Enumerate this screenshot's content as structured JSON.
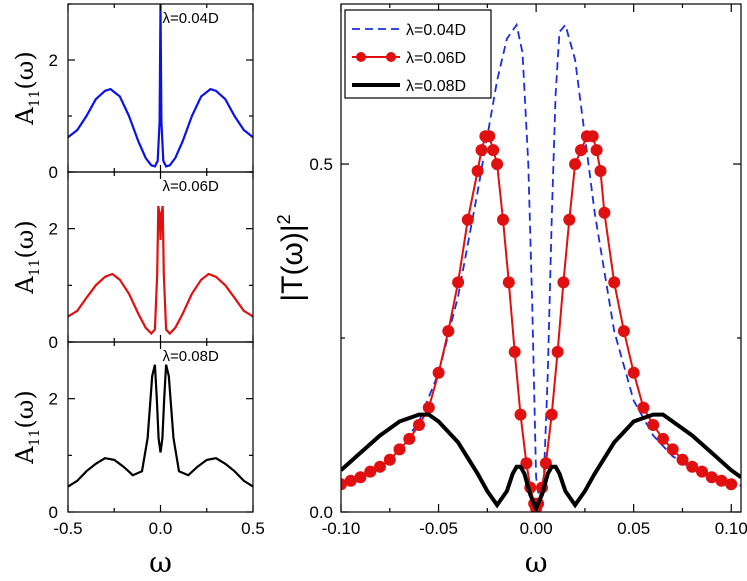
{
  "chart_data": [
    {
      "type": "line",
      "panel": "left-top",
      "annotation": "λ=0.04D",
      "ylabel": "A11(ω)",
      "ylabel_main": "A",
      "ylabel_sub": "11",
      "ylabel_tail": "(ω)",
      "xlabel": "",
      "xlim": [
        -0.5,
        0.5
      ],
      "ylim": [
        0,
        3.0
      ],
      "y_ticks": [
        "0",
        "2"
      ],
      "color": "#0a12e8",
      "x": [
        -0.5,
        -0.45,
        -0.4,
        -0.35,
        -0.3,
        -0.27,
        -0.22,
        -0.17,
        -0.12,
        -0.08,
        -0.05,
        -0.03,
        -0.015,
        -0.005,
        0.0,
        0.005,
        0.015,
        0.03,
        0.05,
        0.08,
        0.12,
        0.17,
        0.22,
        0.27,
        0.3,
        0.35,
        0.4,
        0.45,
        0.5
      ],
      "y": [
        0.62,
        0.75,
        1.0,
        1.3,
        1.45,
        1.48,
        1.35,
        1.0,
        0.55,
        0.25,
        0.12,
        0.1,
        0.2,
        0.9,
        3.0,
        0.9,
        0.2,
        0.1,
        0.12,
        0.25,
        0.55,
        1.0,
        1.35,
        1.48,
        1.45,
        1.3,
        1.0,
        0.75,
        0.62
      ]
    },
    {
      "type": "line",
      "panel": "left-middle",
      "annotation": "λ=0.06D",
      "ylabel": "A11(ω)",
      "ylabel_main": "A",
      "ylabel_sub": "11",
      "ylabel_tail": "(ω)",
      "xlabel": "",
      "xlim": [
        -0.5,
        0.5
      ],
      "ylim": [
        0,
        3.0
      ],
      "y_ticks": [
        "0",
        "2"
      ],
      "color": "#e01010",
      "x": [
        -0.5,
        -0.45,
        -0.4,
        -0.35,
        -0.3,
        -0.26,
        -0.22,
        -0.17,
        -0.12,
        -0.08,
        -0.05,
        -0.03,
        -0.018,
        -0.012,
        -0.005,
        0.0,
        0.005,
        0.012,
        0.018,
        0.03,
        0.05,
        0.08,
        0.12,
        0.17,
        0.22,
        0.26,
        0.3,
        0.35,
        0.4,
        0.45,
        0.5
      ],
      "y": [
        0.45,
        0.55,
        0.78,
        1.0,
        1.15,
        1.2,
        1.1,
        0.85,
        0.5,
        0.25,
        0.15,
        0.22,
        1.2,
        2.4,
        2.25,
        1.8,
        2.25,
        2.4,
        1.2,
        0.22,
        0.15,
        0.25,
        0.5,
        0.85,
        1.1,
        1.2,
        1.15,
        1.0,
        0.78,
        0.55,
        0.45
      ]
    },
    {
      "type": "line",
      "panel": "left-bottom",
      "annotation": "λ=0.08D",
      "ylabel": "A11(ω)",
      "ylabel_main": "A",
      "ylabel_sub": "11",
      "ylabel_tail": "(ω)",
      "xlabel": "ω",
      "xlim": [
        -0.5,
        0.5
      ],
      "ylim": [
        0,
        3.0
      ],
      "y_ticks": [
        "0",
        "2"
      ],
      "x_ticks": [
        "-0.5",
        "0.0",
        "0.5"
      ],
      "color": "#000000",
      "x": [
        -0.5,
        -0.45,
        -0.4,
        -0.35,
        -0.3,
        -0.25,
        -0.2,
        -0.15,
        -0.1,
        -0.07,
        -0.045,
        -0.03,
        -0.02,
        -0.01,
        0.0,
        0.01,
        0.02,
        0.03,
        0.045,
        0.07,
        0.1,
        0.15,
        0.2,
        0.25,
        0.3,
        0.35,
        0.4,
        0.45,
        0.5
      ],
      "y": [
        0.45,
        0.55,
        0.72,
        0.85,
        0.95,
        0.92,
        0.8,
        0.65,
        0.72,
        1.3,
        2.4,
        2.6,
        2.0,
        1.3,
        1.05,
        1.3,
        2.0,
        2.6,
        2.4,
        1.3,
        0.72,
        0.65,
        0.8,
        0.92,
        0.95,
        0.85,
        0.72,
        0.55,
        0.45
      ]
    },
    {
      "type": "line",
      "panel": "right",
      "ylabel": "|T(ω)|²",
      "ylabel_text": "|T(ω)|",
      "ylabel_sup": "2",
      "xlabel": "ω",
      "xlim": [
        -0.1,
        0.105
      ],
      "ylim": [
        0,
        0.73
      ],
      "x_ticks": [
        "-0.10",
        "-0.05",
        "0.00",
        "0.05",
        "0.10"
      ],
      "y_ticks": [
        "0.0",
        "0.5"
      ],
      "legend_position": "top-left",
      "series": [
        {
          "name": "λ=0.04D",
          "style": "dashed",
          "color": "#1a2ee0",
          "x": [
            -0.1,
            -0.09,
            -0.08,
            -0.07,
            -0.06,
            -0.05,
            -0.04,
            -0.03,
            -0.02,
            -0.015,
            -0.01,
            -0.007,
            -0.004,
            -0.002,
            0.0,
            0.002,
            0.004,
            0.006,
            0.008,
            0.01,
            0.012,
            0.015,
            0.02,
            0.025,
            0.03,
            0.04,
            0.05,
            0.06,
            0.07,
            0.08,
            0.09,
            0.1,
            0.105
          ],
          "y": [
            0.04,
            0.052,
            0.065,
            0.09,
            0.13,
            0.2,
            0.31,
            0.46,
            0.62,
            0.68,
            0.7,
            0.66,
            0.5,
            0.3,
            0.05,
            0.01,
            0.05,
            0.2,
            0.42,
            0.6,
            0.69,
            0.7,
            0.65,
            0.54,
            0.43,
            0.26,
            0.16,
            0.11,
            0.08,
            0.062,
            0.05,
            0.042,
            0.038
          ]
        },
        {
          "name": "λ=0.06D",
          "style": "solid-markers",
          "color": "#e01010",
          "x": [
            -0.1,
            -0.095,
            -0.09,
            -0.085,
            -0.08,
            -0.075,
            -0.07,
            -0.065,
            -0.06,
            -0.055,
            -0.05,
            -0.045,
            -0.04,
            -0.035,
            -0.03,
            -0.028,
            -0.026,
            -0.024,
            -0.022,
            -0.02,
            -0.017,
            -0.014,
            -0.011,
            -0.008,
            -0.005,
            -0.003,
            -0.001,
            0.0,
            0.001,
            0.003,
            0.005,
            0.008,
            0.011,
            0.014,
            0.017,
            0.02,
            0.023,
            0.026,
            0.029,
            0.031,
            0.033,
            0.035,
            0.04,
            0.045,
            0.05,
            0.055,
            0.06,
            0.065,
            0.07,
            0.075,
            0.08,
            0.085,
            0.09,
            0.095,
            0.1
          ],
          "y": [
            0.04,
            0.045,
            0.05,
            0.058,
            0.065,
            0.075,
            0.09,
            0.105,
            0.125,
            0.15,
            0.2,
            0.26,
            0.33,
            0.42,
            0.49,
            0.52,
            0.54,
            0.54,
            0.52,
            0.5,
            0.42,
            0.33,
            0.23,
            0.14,
            0.07,
            0.035,
            0.012,
            0.005,
            0.012,
            0.035,
            0.07,
            0.14,
            0.23,
            0.33,
            0.42,
            0.5,
            0.52,
            0.54,
            0.54,
            0.52,
            0.49,
            0.43,
            0.33,
            0.26,
            0.2,
            0.15,
            0.125,
            0.105,
            0.09,
            0.075,
            0.065,
            0.058,
            0.05,
            0.045,
            0.04
          ]
        },
        {
          "name": "λ=0.08D",
          "style": "solid-thick",
          "color": "#000000",
          "x": [
            -0.1,
            -0.09,
            -0.08,
            -0.07,
            -0.06,
            -0.055,
            -0.05,
            -0.04,
            -0.03,
            -0.025,
            -0.02,
            -0.015,
            -0.012,
            -0.01,
            -0.008,
            -0.006,
            -0.003,
            0.0,
            0.003,
            0.006,
            0.008,
            0.01,
            0.012,
            0.015,
            0.02,
            0.025,
            0.03,
            0.04,
            0.05,
            0.06,
            0.065,
            0.07,
            0.08,
            0.09,
            0.1,
            0.105
          ],
          "y": [
            0.06,
            0.085,
            0.11,
            0.13,
            0.14,
            0.14,
            0.13,
            0.1,
            0.055,
            0.03,
            0.01,
            0.03,
            0.055,
            0.065,
            0.065,
            0.055,
            0.025,
            0.005,
            0.025,
            0.055,
            0.065,
            0.065,
            0.055,
            0.03,
            0.01,
            0.03,
            0.055,
            0.1,
            0.13,
            0.14,
            0.14,
            0.13,
            0.11,
            0.085,
            0.06,
            0.05
          ]
        }
      ]
    }
  ]
}
